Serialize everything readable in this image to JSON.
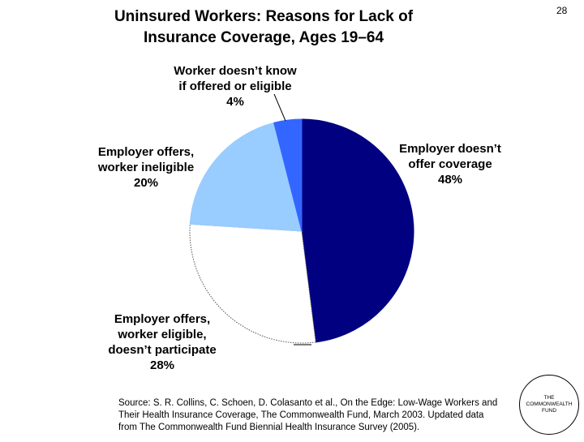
{
  "page": {
    "title_line1": "Uninsured Workers: Reasons for Lack of",
    "title_line2": "Insurance Coverage, Ages 19–64",
    "page_number": "28"
  },
  "chart_data": {
    "type": "pie",
    "title": "Uninsured Workers: Reasons for Lack of Insurance Coverage, Ages 19–64",
    "slices": [
      {
        "label_lines": [
          "Employer doesn’t",
          "offer coverage"
        ],
        "pct_label": "48%",
        "value": 48,
        "color": "#000080",
        "stroke": "#000080"
      },
      {
        "label_lines": [
          "Employer offers,",
          "worker eligible,",
          "doesn’t participate"
        ],
        "pct_label": "28%",
        "value": 28,
        "color": "#ffffff",
        "stroke": "#555555"
      },
      {
        "label_lines": [
          "Employer offers,",
          "worker ineligible"
        ],
        "pct_label": "20%",
        "value": 20,
        "color": "#99ccff",
        "stroke": "#99ccff"
      },
      {
        "label_lines": [
          "Worker doesn’t know",
          "if offered or eligible"
        ],
        "pct_label": "4%",
        "value": 4,
        "color": "#3366ff",
        "stroke": "#3366ff"
      }
    ]
  },
  "source": {
    "text": "Source: S. R. Collins, C. Schoen, D. Colasanto et al., On the Edge: Low-Wage Workers and Their Health Insurance Coverage, The Commonwealth Fund, March 2003. Updated data from The Commonwealth Fund Biennial Health Insurance Survey (2005)."
  },
  "logo": {
    "line1": "THE",
    "line2": "COMMONWEALTH",
    "line3": "FUND"
  }
}
